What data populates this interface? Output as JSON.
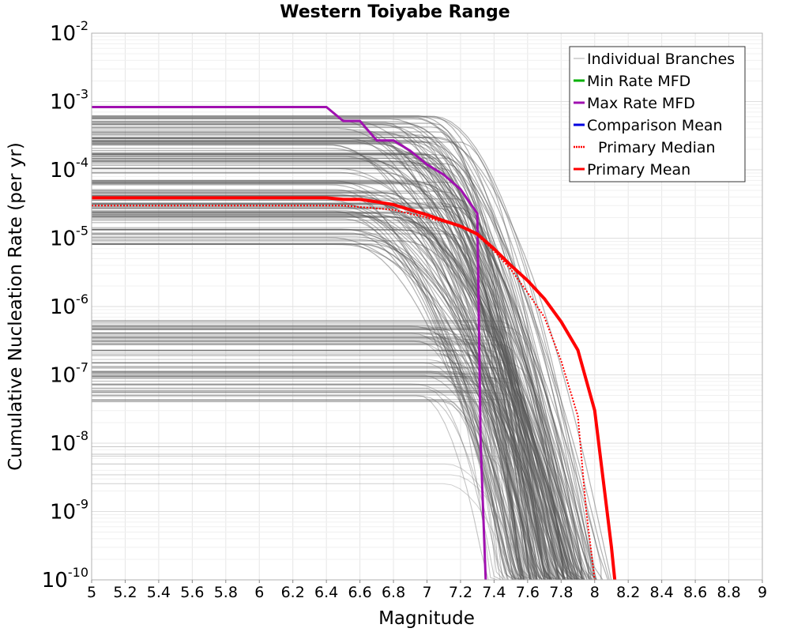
{
  "chart_data": {
    "type": "line",
    "title": "Western Toiyabe Range",
    "xlabel": "Magnitude",
    "ylabel": "Cumulative Nucleation Rate (per yr)",
    "xlim": [
      5,
      9
    ],
    "ylim": [
      1e-10,
      0.01
    ],
    "yscale": "log",
    "grid": true,
    "legend_position": "top-right",
    "x_ticks": [
      "5",
      "5.2",
      "5.4",
      "5.6",
      "5.8",
      "6",
      "6.2",
      "6.4",
      "6.6",
      "6.8",
      "7",
      "7.2",
      "7.4",
      "7.6",
      "7.8",
      "8",
      "8.2",
      "8.4",
      "8.6",
      "8.8",
      "9"
    ],
    "y_ticks": [
      {
        "base": "10",
        "exp": "-2",
        "value": 0.01
      },
      {
        "base": "10",
        "exp": "-3",
        "value": 0.001
      },
      {
        "base": "10",
        "exp": "-4",
        "value": 0.0001
      },
      {
        "base": "10",
        "exp": "-5",
        "value": 1e-05
      },
      {
        "base": "10",
        "exp": "-6",
        "value": 1e-06
      },
      {
        "base": "10",
        "exp": "-7",
        "value": 1e-07
      },
      {
        "base": "10",
        "exp": "-8",
        "value": 1e-08
      },
      {
        "base": "10",
        "exp": "-9",
        "value": 1e-09
      },
      {
        "base": "10",
        "exp": "-10",
        "value": 1e-10
      }
    ],
    "legend": [
      {
        "label": "Individual Branches",
        "color": "#c8c8c8",
        "style": "solid"
      },
      {
        "label": "Min Rate MFD",
        "color": "#00b000",
        "style": "solid"
      },
      {
        "label": "Max Rate MFD",
        "color": "#a010b0",
        "style": "solid"
      },
      {
        "label": "Comparison Mean",
        "color": "#0000e0",
        "style": "solid"
      },
      {
        "label": "Primary Median",
        "color": "#ff0000",
        "style": "dotted"
      },
      {
        "label": "Primary Mean",
        "color": "#ff0000",
        "style": "solid"
      }
    ],
    "series": [
      {
        "name": "Max Rate MFD",
        "color": "#a010b0",
        "x": [
          5.0,
          6.4,
          6.5,
          6.6,
          6.7,
          6.8,
          6.9,
          7.0,
          7.1,
          7.2,
          7.3,
          7.32,
          7.35
        ],
        "y": [
          0.00083,
          0.00083,
          0.00052,
          0.00052,
          0.00027,
          0.00027,
          0.00019,
          0.00012,
          8.5e-05,
          5.2e-05,
          2.3e-05,
          1e-08,
          1e-10
        ]
      },
      {
        "name": "Primary Median",
        "color": "#ff0000",
        "x": [
          5.0,
          6.5,
          6.8,
          7.0,
          7.2,
          7.3,
          7.4,
          7.5,
          7.6,
          7.7,
          7.8,
          7.9,
          7.95,
          8.0
        ],
        "y": [
          3e-05,
          3e-05,
          2.6e-05,
          2e-05,
          1.5e-05,
          1.1e-05,
          6.5e-06,
          3.5e-06,
          1.6e-06,
          7e-07,
          1.6e-07,
          2.5e-08,
          1e-09,
          1e-10
        ]
      },
      {
        "name": "Primary Mean",
        "color": "#ff0000",
        "x": [
          5.0,
          6.4,
          6.5,
          6.6,
          6.7,
          6.8,
          6.9,
          7.0,
          7.1,
          7.2,
          7.3,
          7.4,
          7.5,
          7.6,
          7.7,
          7.8,
          7.9,
          8.0,
          8.05,
          8.1,
          8.12
        ],
        "y": [
          3.9e-05,
          3.9e-05,
          3.7e-05,
          3.7e-05,
          3.4e-05,
          3.1e-05,
          2.6e-05,
          2.2e-05,
          1.8e-05,
          1.5e-05,
          1.15e-05,
          7e-06,
          4e-06,
          2.4e-06,
          1.3e-06,
          6e-07,
          2.3e-07,
          3e-08,
          3e-09,
          3e-10,
          1e-10
        ]
      }
    ]
  }
}
